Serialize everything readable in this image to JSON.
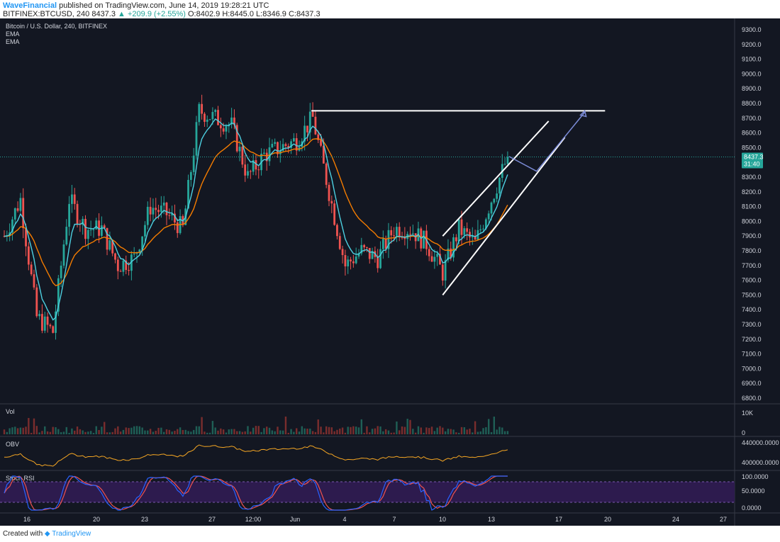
{
  "header": {
    "author": "WaveFinancial",
    "published": "published on TradingView.com, June 14, 2019 19:28:21 UTC",
    "symbol": "BITFINEX:BTCUSD, 240",
    "price": "8437.3",
    "change": "▲ +209.9 (+2.55%)",
    "ohlc_o": "O:8402.9",
    "ohlc_h": "H:8445.0",
    "ohlc_l": "L:8346.9",
    "ohlc_c": "C:8437.3"
  },
  "legend": {
    "title": "Bitcoin / U.S. Dollar, 240, BITFINEX",
    "ema1": "EMA",
    "ema2": "EMA"
  },
  "price_tag": {
    "price": "8437.3",
    "countdown": "31:40"
  },
  "panes": {
    "vol": "Vol",
    "obv": "OBV",
    "rsi": "Stoch RSI"
  },
  "footer": {
    "created": "Created with",
    "brand": "TradingView"
  },
  "colors": {
    "up": "#26a69a",
    "down": "#ef5350",
    "ema_fast": "#4dd0e1",
    "ema_slow": "#f57c00",
    "obv": "#f5a623",
    "rsi_k": "#2962ff",
    "rsi_d": "#ef5350",
    "background": "#131722"
  },
  "chart_data": {
    "type": "candlestick",
    "title": "Bitcoin / U.S. Dollar, 240, BITFINEX",
    "x_ticks": [
      "16",
      "20",
      "23",
      "27",
      "12:00",
      "Jun",
      "4",
      "7",
      "10",
      "13",
      "17",
      "20",
      "24",
      "27"
    ],
    "y_ticks": [
      "9300.0",
      "9200.0",
      "9100.0",
      "9000.0",
      "8900.0",
      "8800.0",
      "8700.0",
      "8600.0",
      "8500.0",
      "8400.0",
      "8300.0",
      "8200.0",
      "8100.0",
      "8000.0",
      "7900.0",
      "7800.0",
      "7700.0",
      "7600.0",
      "7500.0",
      "7400.0",
      "7300.0",
      "7200.0",
      "7100.0",
      "7000.0",
      "6900.0",
      "6800.0"
    ],
    "ylim": [
      6800,
      9300
    ],
    "close_path": [
      {
        "x": "May 15",
        "y": 7900
      },
      {
        "x": "May 16",
        "y": 8150
      },
      {
        "x": "May 17",
        "y": 7350
      },
      {
        "x": "May 18",
        "y": 7250
      },
      {
        "x": "May 19",
        "y": 8150
      },
      {
        "x": "May 20",
        "y": 7950
      },
      {
        "x": "May 21",
        "y": 7950
      },
      {
        "x": "May 22",
        "y": 7700
      },
      {
        "x": "May 23",
        "y": 7750
      },
      {
        "x": "May 24",
        "y": 8100
      },
      {
        "x": "May 25",
        "y": 8050
      },
      {
        "x": "May 26",
        "y": 7950
      },
      {
        "x": "May 27",
        "y": 8750
      },
      {
        "x": "May 28",
        "y": 8700
      },
      {
        "x": "May 29",
        "y": 8650
      },
      {
        "x": "May 30",
        "y": 8300
      },
      {
        "x": "May 31",
        "y": 8450
      },
      {
        "x": "Jun 1",
        "y": 8550
      },
      {
        "x": "Jun 2",
        "y": 8700
      },
      {
        "x": "Jun 3",
        "y": 8200
      },
      {
        "x": "Jun 4",
        "y": 7700
      },
      {
        "x": "Jun 5",
        "y": 7800
      },
      {
        "x": "Jun 6",
        "y": 7750
      },
      {
        "x": "Jun 7",
        "y": 7950
      },
      {
        "x": "Jun 8",
        "y": 7950
      },
      {
        "x": "Jun 9",
        "y": 7850
      },
      {
        "x": "Jun 10",
        "y": 7650
      },
      {
        "x": "Jun 11",
        "y": 7950
      },
      {
        "x": "Jun 12",
        "y": 7850
      },
      {
        "x": "Jun 13",
        "y": 8150
      },
      {
        "x": "Jun 14",
        "y": 8437.3
      }
    ],
    "resistance": {
      "x_start": "Jun 2",
      "x_end": "Jun 20",
      "y": 8750
    },
    "channel_upper": [
      {
        "x": "Jun 10",
        "y": 7900
      },
      {
        "x": "Jun 16",
        "y": 8680
      }
    ],
    "channel_lower": [
      {
        "x": "Jun 10",
        "y": 7500
      },
      {
        "x": "Jun 17",
        "y": 8570
      }
    ],
    "projection": [
      {
        "x": "Jun 14",
        "y": 8440
      },
      {
        "x": "Jun 15",
        "y": 8340
      },
      {
        "x": "Jun 17",
        "y": 8740
      }
    ],
    "last_price": 8437.3,
    "vol_ticks": [
      "10K",
      "0"
    ],
    "obv_ticks": [
      "440000.0000",
      "400000.0000"
    ],
    "rsi_ticks": [
      "100.0000",
      "50.0000",
      "0.0000"
    ]
  }
}
